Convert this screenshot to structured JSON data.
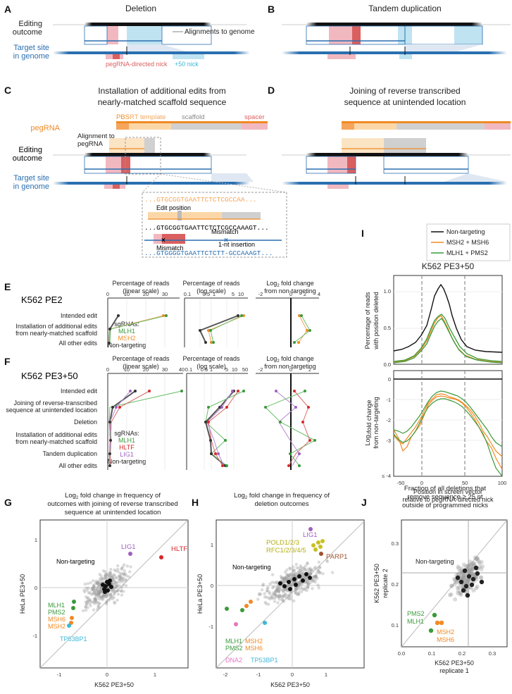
{
  "panels": {
    "A": {
      "letter": "A",
      "title": "Deletion",
      "editing_outcome_1": "Editing",
      "editing_outcome_2": "outcome",
      "target_1": "Target site",
      "target_2": "in genome",
      "alignments": "Alignments to genome",
      "nick": "pegRNA-directed nick",
      "plus50": "+50 nick"
    },
    "B": {
      "letter": "B",
      "title": "Tandem duplication"
    },
    "C": {
      "letter": "C",
      "title_1": "Installation of additional edits from",
      "title_2": "nearly-matched scaffold sequence",
      "pegrna": "pegRNA",
      "pbs": "PBS",
      "rt": "RT template",
      "scaffold": "scaffold",
      "spacer": "spacer",
      "align_1": "Alignment to",
      "align_2": "pegRNA",
      "inset_seq1": "...GTGCGGTGAATTCTCTCGCCAA...",
      "edit_position": "Edit position",
      "inset_seq2": "...GTGCGGTGAATTCTCTCGCCAAAGT...",
      "mismatch_a": "Mismatch",
      "mismatch_b": "Mismatch",
      "insertion": "1-nt insertion",
      "inset_seq3": "...GTGGGGTGAATTCTCTT-GCCAAAGT..."
    },
    "D": {
      "letter": "D",
      "title_1": "Joining of reverse transcribed",
      "title_2": "sequence at unintended location"
    },
    "E": {
      "letter": "E",
      "cell": "K562 PE2",
      "col1_1": "Percentage of reads",
      "col1_2": "(linear scale)",
      "col2_1": "Percentage of reads",
      "col2_2": "(log scale)",
      "col3_1": "Log",
      "col3_2": "fold change",
      "col3_3": "from non-targeting",
      "rows": [
        "Intended edit",
        "Installation of additional edits",
        "from nearly-matched scaffold",
        "All other edits"
      ],
      "sg_title": "sgRNAs:",
      "sg": [
        "MLH1",
        "MSH2",
        "Non-targeting"
      ],
      "ticks1": [
        "0",
        "10",
        "20",
        "30"
      ],
      "ticks2": [
        "0.1",
        "0.5",
        "1",
        "5",
        "10"
      ],
      "ticks3": [
        "-2",
        "0",
        "2",
        "4"
      ]
    },
    "F": {
      "letter": "F",
      "cell": "K562 PE3+50",
      "rows": [
        "Intended edit",
        "Joining of reverse-transcribed",
        "sequence at unintended location",
        "Deletion",
        "Installation of additional edits",
        "from nearly-matched scaffold",
        "Tandem duplication",
        "All other edits"
      ],
      "sg_title": "sgRNAs:",
      "sg": [
        "MLH1",
        "HLTF",
        "LIG1",
        "Non-targeting"
      ],
      "ticks1": [
        "0",
        "10",
        "20",
        "30",
        "40"
      ],
      "ticks2": [
        "0.1",
        "0.5",
        "1",
        "5",
        "10",
        "50"
      ],
      "ticks3": [
        "-2",
        "0",
        "2"
      ]
    },
    "G": {
      "letter": "G",
      "title_1": "fold change in frequency of",
      "title_log": "Log",
      "title_2": "outcomes with joining of reverse transcribed",
      "title_3": "sequence at unintended location",
      "ylabel": "HeLa PE3+50",
      "xlabel": "K562 PE3+50",
      "nt": "Non-targeting",
      "labels": {
        "lig1": "LIG1",
        "hltf": "HLTF",
        "mlh1": "MLH1",
        "pms2": "PMS2",
        "msh6": "MSH6",
        "msh2": "MSH2",
        "tp53": "TP53BP1"
      },
      "xt": [
        "-1",
        "0",
        "1"
      ],
      "yt": [
        "-1",
        "0",
        "1"
      ]
    },
    "H": {
      "letter": "H",
      "title_log": "Log",
      "title_1": "fold change in frequency of",
      "title_2": "deletion outcomes",
      "ylabel": "HeLa PE3+50",
      "xlabel": "K562 PE3+50",
      "nt": "Non-targeting",
      "labels": {
        "lig1": "LIG1",
        "pold": "POLD1/2/3",
        "rfc": "RFC1/2/3/4/5",
        "parp1": "PARP1",
        "mlh1": "MLH1",
        "pms2": "PMS2",
        "msh2": "MSH2",
        "msh6": "MSH6",
        "dna2": "DNA2",
        "tp53": "TP53BP1"
      },
      "xt": [
        "-2",
        "-1",
        "0",
        "1"
      ],
      "yt": [
        "-1",
        "0",
        "1"
      ]
    },
    "I": {
      "letter": "I",
      "title": "K562 PE3+50",
      "legend": [
        "Non-targeting",
        "MSH2 + MSH6",
        "MLH1 + PMS2"
      ],
      "ylabel_top_1": "Percentage of reads",
      "ylabel_top_2": "with position deleted",
      "ylabel_bot_1": "Log",
      "ylabel_bot_2": "fold change",
      "ylabel_bot_3": "from non-targeting",
      "xlabel_1": "Position in screen vector",
      "xlabel_2": "relative to pegRNA-directed nick",
      "yt_top": [
        "0.0",
        "0.5",
        "1.0"
      ],
      "yt_bot": [
        "0",
        "-1",
        "-2",
        "-3",
        "≤ -4"
      ],
      "xt": [
        "-50",
        "0",
        "50",
        "100"
      ]
    },
    "J": {
      "letter": "J",
      "title_1": "Fraction of all deletions that",
      "title_2": "remove sequence ≥ 25 nt",
      "title_3": "outside of programmed nicks",
      "nt": "Non-targeting",
      "pms2": "PMS2",
      "mlh1": "MLH1",
      "msh2": "MSH2",
      "msh6": "MSH6",
      "ylabel_1": "K562 PE3+50",
      "ylabel_2": "replicate 2",
      "xlabel_1": "K562 PE3+50",
      "xlabel_2": "replicate 1",
      "xt": [
        "0.0",
        "0.1",
        "0.2",
        "0.3"
      ],
      "yt": [
        "0.1",
        "0.2",
        "0.3"
      ]
    }
  },
  "colors": {
    "blue": "#2a6fb0",
    "red": "#d9605f",
    "pink": "#f2b8c0",
    "cyan": "#8fd0e6",
    "orange": "#f08a24",
    "peach": "#f9cf9c",
    "gray": "#bbbbbb",
    "green": "#3a9a3a",
    "purple": "#9f5fc0",
    "hltf": "#d62728",
    "tp53": "#3bb8d8",
    "olive": "#c8c020",
    "brown": "#a0522d"
  }
}
